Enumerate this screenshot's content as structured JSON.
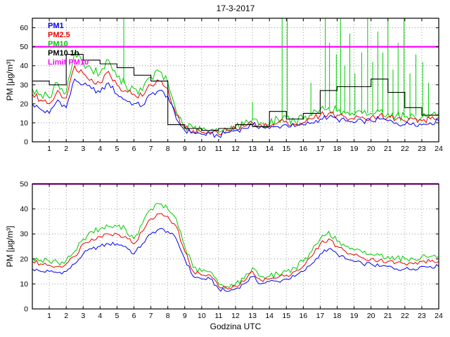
{
  "figure": {
    "title": "17-3-2017",
    "background": "#ffffff"
  },
  "colors": {
    "pm1": "#0000ee",
    "pm25": "#ee0000",
    "pm10": "#00cc00",
    "pm10_1h": "#000000",
    "limit": "#ff00ff",
    "grid": "#888888",
    "axis": "#000000"
  },
  "legend": {
    "items": [
      {
        "label": "PM1",
        "color": "#0000ee"
      },
      {
        "label": "PM2.5",
        "color": "#ee0000"
      },
      {
        "label": "PM10",
        "color": "#00cc00"
      },
      {
        "label": "PM10 1h",
        "color": "#000000"
      },
      {
        "label": "Limit PM10",
        "color": "#ff00ff"
      }
    ]
  },
  "chart_data": [
    {
      "type": "line",
      "position": "top",
      "title": "17-3-2017",
      "ylabel": "PM [µg/m³]",
      "xlabel": "",
      "xlim": [
        0,
        24
      ],
      "ylim": [
        0,
        65
      ],
      "xticks": [
        1,
        2,
        3,
        4,
        5,
        6,
        7,
        8,
        9,
        10,
        11,
        12,
        13,
        14,
        15,
        16,
        17,
        18,
        19,
        20,
        21,
        22,
        23,
        24
      ],
      "yticks": [
        0,
        10,
        20,
        30,
        40,
        50,
        60
      ],
      "grid": true,
      "limit_line": {
        "y": 50,
        "color": "#ff00ff",
        "label": "Limit PM10"
      },
      "x_start": 0,
      "x_step": 0.5,
      "series": [
        {
          "name": "PM1",
          "color": "#0000ee",
          "noise": 1.5,
          "values": [
            20,
            17,
            15,
            22,
            18,
            33,
            30,
            28,
            26,
            31,
            25,
            22,
            20,
            19,
            25,
            27,
            24,
            12,
            6,
            5,
            4,
            4,
            3,
            5,
            6,
            7,
            9,
            8,
            7,
            8,
            9,
            8,
            9,
            10,
            12,
            13,
            12,
            11,
            10,
            11,
            11,
            12,
            11,
            10,
            9,
            10,
            9,
            10,
            11
          ]
        },
        {
          "name": "PM2.5",
          "color": "#ee0000",
          "noise": 1.8,
          "values": [
            25,
            22,
            20,
            27,
            23,
            40,
            36,
            33,
            31,
            37,
            30,
            27,
            25,
            24,
            30,
            32,
            28,
            14,
            7,
            6,
            5,
            5,
            4,
            6,
            7,
            8,
            10,
            9,
            8,
            10,
            11,
            9,
            10,
            12,
            14,
            15,
            14,
            13,
            12,
            13,
            13,
            14,
            13,
            12,
            11,
            12,
            11,
            12,
            13
          ]
        },
        {
          "name": "PM10",
          "color": "#00cc00",
          "noise": 2.5,
          "values": [
            28,
            25,
            23,
            31,
            26,
            47,
            42,
            38,
            36,
            43,
            34,
            30,
            28,
            27,
            34,
            37,
            31,
            16,
            8,
            7,
            6,
            6,
            5,
            7,
            8,
            9,
            12,
            10,
            9,
            12,
            13,
            11,
            12,
            14,
            17,
            18,
            16,
            15,
            14,
            15,
            15,
            16,
            15,
            14,
            13,
            14,
            13,
            14,
            15
          ],
          "spikes": [
            [
              5.4,
              66
            ],
            [
              13.0,
              21
            ],
            [
              14.75,
              66
            ],
            [
              15.05,
              66
            ],
            [
              16.45,
              31
            ],
            [
              17.3,
              66
            ],
            [
              17.55,
              52
            ],
            [
              17.95,
              46
            ],
            [
              18.2,
              66
            ],
            [
              18.45,
              40
            ],
            [
              18.75,
              57
            ],
            [
              19.05,
              36
            ],
            [
              19.45,
              47
            ],
            [
              19.8,
              66
            ],
            [
              20.1,
              42
            ],
            [
              20.4,
              58
            ],
            [
              20.7,
              47
            ],
            [
              21.0,
              66
            ],
            [
              21.3,
              38
            ],
            [
              21.6,
              52
            ],
            [
              21.95,
              66
            ],
            [
              22.3,
              36
            ],
            [
              22.65,
              46
            ],
            [
              23.05,
              42
            ],
            [
              23.4,
              31
            ]
          ]
        },
        {
          "name": "PM10 1h",
          "color": "#000000",
          "step_hour_values": [
            32,
            30,
            46,
            43,
            41,
            39,
            35,
            32,
            9,
            7,
            6,
            7,
            9,
            8,
            16,
            12,
            15,
            27,
            29,
            29,
            33,
            26,
            18,
            14
          ]
        }
      ]
    },
    {
      "type": "line",
      "position": "bottom",
      "title": "",
      "ylabel": "PM [µg/m³]",
      "xlabel": "Godzina UTC",
      "xlim": [
        0,
        24
      ],
      "ylim": [
        0,
        50
      ],
      "xticks": [
        1,
        2,
        3,
        4,
        5,
        6,
        7,
        8,
        9,
        10,
        11,
        12,
        13,
        14,
        15,
        16,
        17,
        18,
        19,
        20,
        21,
        22,
        23,
        24
      ],
      "yticks": [
        0,
        10,
        20,
        30,
        40,
        50
      ],
      "grid": true,
      "limit_line": {
        "y": 50,
        "color": "#ff00ff",
        "label": "Limit PM10"
      },
      "x_start": 0,
      "x_step": 0.5,
      "series": [
        {
          "name": "PM1",
          "color": "#0000ee",
          "noise": 0.8,
          "values": [
            16,
            15,
            15,
            14.5,
            15,
            18,
            22,
            24,
            25,
            26,
            26,
            25,
            22,
            26,
            30,
            32,
            31,
            28,
            20,
            13,
            12,
            12,
            8,
            7,
            8,
            10,
            13,
            10,
            11,
            11,
            12,
            13,
            15,
            18,
            22,
            24,
            22,
            20,
            19,
            18,
            18,
            17,
            17,
            16,
            16,
            16,
            17,
            17,
            17
          ]
        },
        {
          "name": "PM2.5",
          "color": "#ee0000",
          "noise": 0.9,
          "values": [
            19,
            18,
            17.5,
            17,
            18,
            21,
            26,
            28,
            29,
            30,
            30,
            29,
            26,
            31,
            36,
            38,
            37,
            33,
            23,
            15,
            13.5,
            13.5,
            9,
            8,
            9,
            11,
            15,
            11.5,
            12,
            12.5,
            13.5,
            15,
            17,
            21,
            26,
            28,
            25,
            23,
            21.5,
            20.5,
            20,
            19.5,
            19,
            18.5,
            18,
            18,
            19,
            19,
            19
          ]
        },
        {
          "name": "PM10",
          "color": "#00cc00",
          "noise": 1.2,
          "values": [
            20.5,
            19.5,
            19,
            18.5,
            19.5,
            23,
            28,
            31,
            32,
            33,
            33,
            32,
            28,
            34,
            40,
            42,
            40,
            36,
            25,
            16.5,
            15,
            15,
            10,
            9,
            10,
            12,
            16.5,
            13,
            13,
            14,
            15,
            16.5,
            19,
            23,
            28,
            31,
            27,
            25,
            23.5,
            22.5,
            22,
            21.5,
            21,
            20.5,
            20,
            20,
            21,
            21,
            21
          ]
        }
      ]
    }
  ]
}
